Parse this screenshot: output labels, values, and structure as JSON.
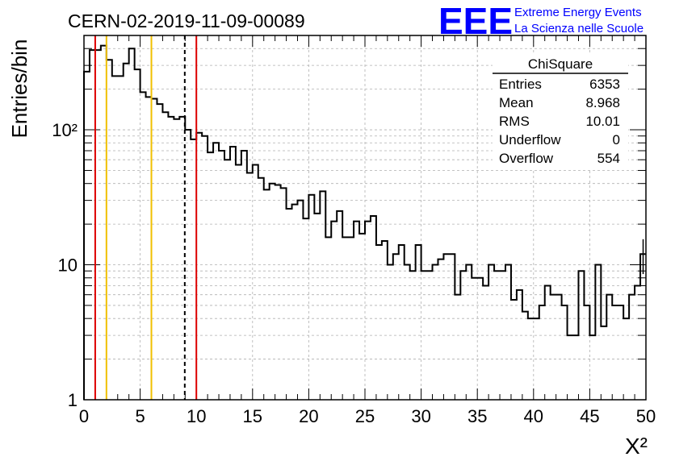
{
  "header": {
    "run_title": "CERN-02-2019-11-09-00089",
    "logo_text": "EEE",
    "org_line1": "Extreme Energy Events",
    "org_line2": "La Scienza nelle Scuole"
  },
  "colors": {
    "histogram": "#000000",
    "red_lines": "#dd0000",
    "yellow_lines": "#f0c000",
    "logo_blue": "#0000ff"
  },
  "stats_box": {
    "title": "ChiSquare",
    "rows": [
      {
        "label": "Entries",
        "value": "6353"
      },
      {
        "label": "Mean",
        "value": "8.968"
      },
      {
        "label": "RMS",
        "value": "10.01"
      },
      {
        "label": "Underflow",
        "value": "0"
      },
      {
        "label": "Overflow",
        "value": "554"
      }
    ]
  },
  "chart_data": {
    "type": "histogram",
    "title": "CERN-02-2019-11-09-00089",
    "xlabel": "X²",
    "ylabel": "Entries/bin",
    "xlim": [
      0,
      50
    ],
    "ylim": [
      1,
      500
    ],
    "y_scale": "log",
    "grid": true,
    "bin_width": 0.5,
    "x_ticks": [
      0,
      5,
      10,
      15,
      20,
      25,
      30,
      35,
      40,
      45,
      50
    ],
    "x_tick_labels": [
      "0",
      "5",
      "10",
      "15",
      "20",
      "25",
      "30",
      "35",
      "40",
      "45",
      "50"
    ],
    "y_ticks": [
      1,
      10,
      100
    ],
    "y_tick_labels": [
      "1",
      "10",
      "10²"
    ],
    "counts": [
      270,
      390,
      390,
      420,
      330,
      250,
      250,
      310,
      400,
      280,
      190,
      175,
      170,
      155,
      135,
      125,
      120,
      125,
      100,
      85,
      95,
      90,
      68,
      80,
      70,
      60,
      75,
      55,
      70,
      48,
      55,
      44,
      36,
      40,
      39,
      37,
      26,
      28,
      30,
      22,
      33,
      24,
      35,
      16,
      21,
      25,
      16,
      16,
      21,
      17,
      21,
      23,
      14,
      15,
      10,
      12,
      14,
      10,
      9,
      14,
      9,
      9,
      10,
      11,
      12,
      12,
      6,
      9,
      10,
      8,
      8,
      7,
      10,
      9,
      9,
      10,
      5.5,
      6.5,
      4.5,
      4,
      4,
      5,
      7,
      6,
      6,
      5,
      3,
      3,
      9,
      5,
      3,
      10,
      3.5,
      6,
      5,
      5,
      4,
      6,
      7,
      12
    ],
    "vertical_lines": [
      {
        "x": 1.0,
        "color": "red",
        "style": "solid"
      },
      {
        "x": 2.0,
        "color": "yellow",
        "style": "solid"
      },
      {
        "x": 6.0,
        "color": "yellow",
        "style": "solid"
      },
      {
        "x": 8.968,
        "color": "black",
        "style": "dashed"
      },
      {
        "x": 10.0,
        "color": "red",
        "style": "solid"
      }
    ]
  }
}
